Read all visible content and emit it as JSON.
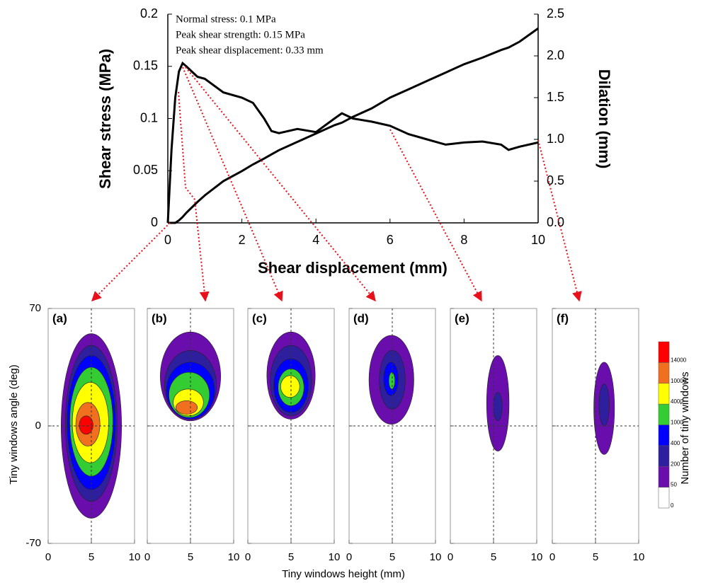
{
  "chart_data": [
    {
      "type": "line",
      "xlabel": "Shear displacement (mm)",
      "ylabel": "Shear stress (MPa)",
      "y2label": "Dilation (mm)",
      "annotations": [
        "Normal stress: 0.1 MPa",
        "Peak shear strength:  0.15 MPa",
        "Peak shear displacement: 0.33 mm"
      ],
      "x": [
        0,
        0.1,
        0.2,
        0.3,
        0.4,
        0.5,
        0.8,
        1,
        1.5,
        2,
        2.3,
        2.6,
        2.8,
        3,
        3.5,
        4,
        4.5,
        4.7,
        5,
        5.5,
        6,
        6.5,
        7,
        7.5,
        8,
        8.5,
        9,
        9.2,
        9.5,
        10
      ],
      "xlim": [
        0,
        10
      ],
      "xticks": [
        0,
        2,
        4,
        6,
        8,
        10
      ],
      "ylim": [
        0,
        0.2
      ],
      "yticks": [
        0,
        0.05,
        0.1,
        0.15,
        0.2
      ],
      "y2lim": [
        0,
        2.5
      ],
      "y2ticks": [
        {
          "value": 0,
          "label": "0.0"
        },
        0.5,
        {
          "value": 1,
          "label": "1.0"
        },
        1.5,
        {
          "value": 2,
          "label": "2.0"
        },
        2.5
      ],
      "series": [
        {
          "color": "#000000",
          "values": [
            0,
            0.07,
            0.12,
            0.145,
            0.153,
            0.15,
            0.14,
            0.138,
            0.125,
            0.12,
            0.115,
            0.1,
            0.088,
            0.086,
            0.09,
            0.087,
            0.1,
            0.105,
            0.1,
            0.097,
            0.093,
            0.085,
            0.08,
            0.075,
            0.077,
            0.078,
            0.075,
            0.07,
            0.073,
            0.077
          ]
        },
        {
          "color": "#000000",
          "axis": "y2",
          "values": [
            0,
            0,
            0,
            0.03,
            0.07,
            0.12,
            0.25,
            0.33,
            0.5,
            0.62,
            0.7,
            0.77,
            0.82,
            0.87,
            0.97,
            1.07,
            1.17,
            1.2,
            1.27,
            1.37,
            1.5,
            1.6,
            1.7,
            1.8,
            1.9,
            1.98,
            2.07,
            2.1,
            2.17,
            2.33
          ]
        }
      ]
    },
    {
      "type": "contour",
      "xlabel": "Tiny windows height (mm)",
      "ylabel": "Tiny windows angle (deg)",
      "xlim": [
        0,
        10
      ],
      "xticks": [
        0,
        5,
        10
      ],
      "ylim": [
        -70,
        70
      ],
      "yticks": [
        -70,
        0,
        70
      ],
      "colorbar": {
        "label": "Number of tiny windows",
        "levels": [
          0,
          50,
          200,
          400,
          1000,
          4000,
          10000,
          14000
        ],
        "colors": [
          "#ffffff",
          "#6a0dad",
          "#2e1f9e",
          "#0000ff",
          "#33cc33",
          "#ffff00",
          "#f07020",
          "#ff0000"
        ]
      },
      "panels": [
        {
          "label": "(a)",
          "contours": [
            {
              "level": 50,
              "x": [
                1.5,
                8.5
              ],
              "y": [
                -55,
                55
              ]
            },
            {
              "level": 200,
              "x": [
                2,
                8
              ],
              "y": [
                -45,
                48
              ]
            },
            {
              "level": 400,
              "x": [
                2.2,
                7.8
              ],
              "y": [
                -38,
                42
              ]
            },
            {
              "level": 1000,
              "x": [
                2.5,
                7.5
              ],
              "y": [
                -30,
                35
              ]
            },
            {
              "level": 4000,
              "x": [
                2.8,
                7
              ],
              "y": [
                -22,
                26
              ]
            },
            {
              "level": 10000,
              "x": [
                3.2,
                6
              ],
              "y": [
                -12,
                14
              ]
            },
            {
              "level": 14000,
              "x": [
                3.6,
                5.2
              ],
              "y": [
                -5,
                6
              ]
            }
          ]
        },
        {
          "label": "(b)",
          "contours": [
            {
              "level": 50,
              "x": [
                1.5,
                8.5
              ],
              "y": [
                3,
                56
              ]
            },
            {
              "level": 200,
              "x": [
                2,
                8
              ],
              "y": [
                4,
                45
              ]
            },
            {
              "level": 400,
              "x": [
                2.2,
                7.8
              ],
              "y": [
                4,
                38
              ]
            },
            {
              "level": 1000,
              "x": [
                2.5,
                7.2
              ],
              "y": [
                5,
                32
              ]
            },
            {
              "level": 4000,
              "x": [
                3,
                6.5
              ],
              "y": [
                6,
                22
              ]
            },
            {
              "level": 10000,
              "x": [
                3.3,
                5.8
              ],
              "y": [
                7,
                15
              ]
            }
          ]
        },
        {
          "label": "(c)",
          "contours": [
            {
              "level": 50,
              "x": [
                2.2,
                7.8
              ],
              "y": [
                4,
                56
              ]
            },
            {
              "level": 200,
              "x": [
                2.6,
                7.4
              ],
              "y": [
                6,
                48
              ]
            },
            {
              "level": 400,
              "x": [
                3,
                7
              ],
              "y": [
                8,
                40
              ]
            },
            {
              "level": 1000,
              "x": [
                3.5,
                6.5
              ],
              "y": [
                12,
                34
              ]
            },
            {
              "level": 4000,
              "x": [
                3.8,
                6
              ],
              "y": [
                17,
                30
              ]
            }
          ]
        },
        {
          "label": "(d)",
          "contours": [
            {
              "level": 50,
              "x": [
                2.3,
                7.5
              ],
              "y": [
                1,
                54
              ]
            },
            {
              "level": 200,
              "x": [
                3.5,
                6.5
              ],
              "y": [
                10,
                45
              ]
            },
            {
              "level": 400,
              "x": [
                4,
                5.7
              ],
              "y": [
                18,
                38
              ]
            },
            {
              "level": 1000,
              "x": [
                4.6,
                5.3
              ],
              "y": [
                22,
                32
              ]
            }
          ]
        },
        {
          "label": "(e)",
          "contours": [
            {
              "level": 50,
              "x": [
                4.2,
                6.8
              ],
              "y": [
                -15,
                42
              ]
            },
            {
              "level": 200,
              "x": [
                5,
                6
              ],
              "y": [
                3,
                20
              ]
            }
          ]
        },
        {
          "label": "(f)",
          "contours": [
            {
              "level": 50,
              "x": [
                4.8,
                7.2
              ],
              "y": [
                -17,
                38
              ]
            },
            {
              "level": 200,
              "x": [
                5.4,
                6.6
              ],
              "y": [
                0,
                25
              ]
            }
          ]
        }
      ]
    }
  ]
}
